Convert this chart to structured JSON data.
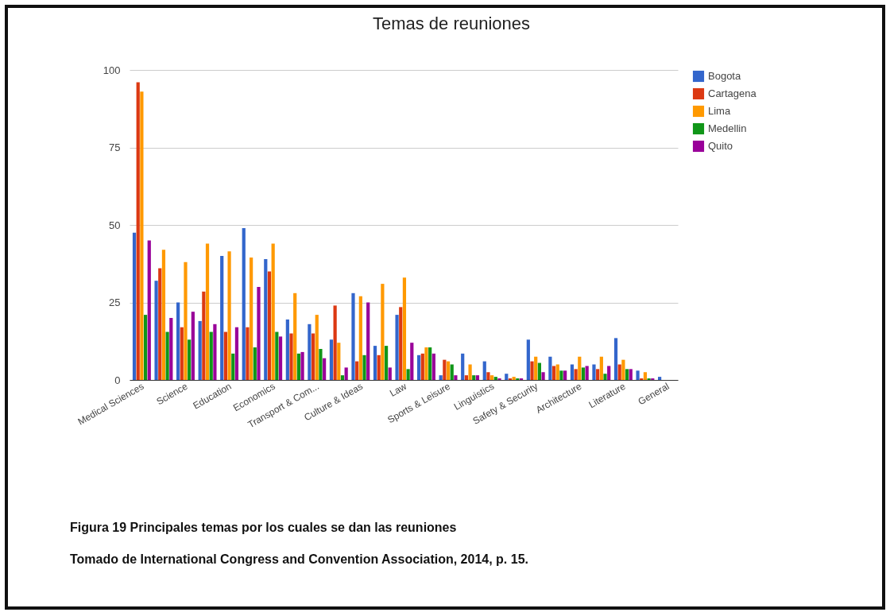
{
  "chart_data": {
    "type": "bar",
    "title": "Temas de reuniones",
    "categories": [
      "Medical Sciences",
      null,
      "Science",
      null,
      "Education",
      null,
      "Economics",
      null,
      "Transport & Com...",
      null,
      "Culture & Ideas",
      null,
      "Law",
      null,
      "Sports & Leisure",
      null,
      "Linguistics",
      null,
      "Safety & Security",
      null,
      "Architecture",
      null,
      "Literature",
      null,
      "General"
    ],
    "series": [
      {
        "name": "Bogota",
        "color": "#3366cc",
        "values": [
          47.5,
          32,
          25,
          19,
          40,
          49,
          39,
          19.5,
          18,
          13,
          28,
          11,
          21,
          8,
          1.5,
          8.5,
          6,
          2,
          13,
          7.5,
          5,
          5,
          13.5,
          3,
          1
        ]
      },
      {
        "name": "Cartagena",
        "color": "#dc3912",
        "values": [
          96,
          36,
          17,
          28.5,
          15.5,
          17,
          35,
          15,
          15,
          24,
          6,
          8,
          23.5,
          8.5,
          6.5,
          1.5,
          2.5,
          0.5,
          6,
          4.5,
          3.5,
          3.5,
          5,
          0.5,
          0
        ]
      },
      {
        "name": "Lima",
        "color": "#ff9900",
        "values": [
          93,
          42,
          38,
          44,
          41.5,
          39.5,
          44,
          28,
          21,
          12,
          27,
          31,
          33,
          10.5,
          6,
          5,
          1.5,
          1,
          7.5,
          5,
          7.5,
          7.5,
          6.5,
          2.5,
          0
        ]
      },
      {
        "name": "Medellin",
        "color": "#109618",
        "values": [
          21,
          15.5,
          13,
          15.5,
          8.5,
          10.5,
          15.5,
          8.5,
          10,
          1.5,
          8,
          11,
          3.5,
          10.5,
          5,
          1.5,
          1,
          0.5,
          5.5,
          3,
          4,
          2,
          3.5,
          0.5,
          0
        ]
      },
      {
        "name": "Quito",
        "color": "#990099",
        "values": [
          45,
          20,
          22,
          18,
          17,
          30,
          14,
          9,
          7,
          4,
          25,
          4,
          12,
          8.5,
          1.5,
          1.5,
          0.5,
          0.5,
          2.5,
          3,
          4.5,
          4.5,
          3.5,
          0.5,
          0
        ]
      }
    ],
    "ylim": [
      0,
      100
    ],
    "yticks": [
      0,
      25,
      50,
      75,
      100
    ],
    "grid": "y",
    "legend": "top right",
    "annotations": [
      "Figura 19  Principales temas por los cuales se dan las reuniones",
      "Tomado de International Congress and Convention Association, 2014, p. 15."
    ]
  }
}
